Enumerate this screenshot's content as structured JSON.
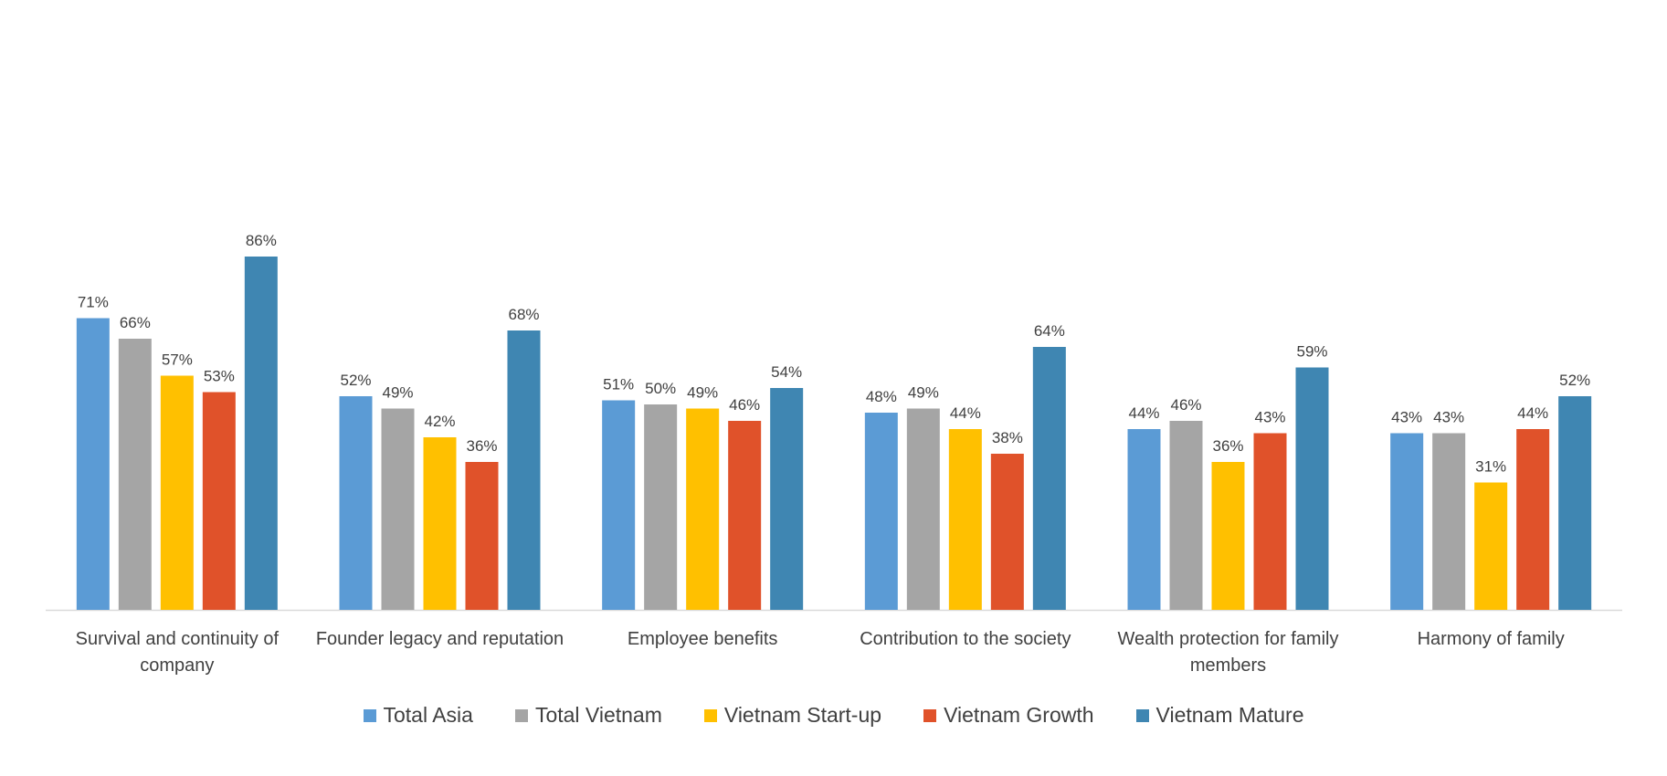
{
  "chart_data": {
    "type": "bar",
    "title": "",
    "xlabel": "",
    "ylabel": "",
    "ylim": [
      0,
      100
    ],
    "grid": false,
    "legend_position": "bottom",
    "categories": [
      [
        "Survival and continuity of",
        "company"
      ],
      [
        "Founder legacy and reputation"
      ],
      [
        "Employee benefits"
      ],
      [
        "Contribution to the society"
      ],
      [
        "Wealth protection for family",
        "members"
      ],
      [
        "Harmony of family"
      ]
    ],
    "series": [
      {
        "name": "Total Asia",
        "color": "#5b9bd5",
        "values": [
          71,
          52,
          51,
          48,
          44,
          43
        ]
      },
      {
        "name": "Total Vietnam",
        "color": "#a5a5a5",
        "values": [
          66,
          49,
          50,
          49,
          46,
          43
        ]
      },
      {
        "name": "Vietnam Start-up",
        "color": "#ffc000",
        "values": [
          57,
          42,
          49,
          44,
          36,
          31
        ]
      },
      {
        "name": "Vietnam Growth",
        "color": "#e0522a",
        "values": [
          53,
          36,
          46,
          38,
          43,
          44
        ]
      },
      {
        "name": "Vietnam Mature",
        "color": "#3f86b2",
        "values": [
          86,
          68,
          54,
          64,
          59,
          52
        ]
      }
    ],
    "value_suffix": "%"
  }
}
